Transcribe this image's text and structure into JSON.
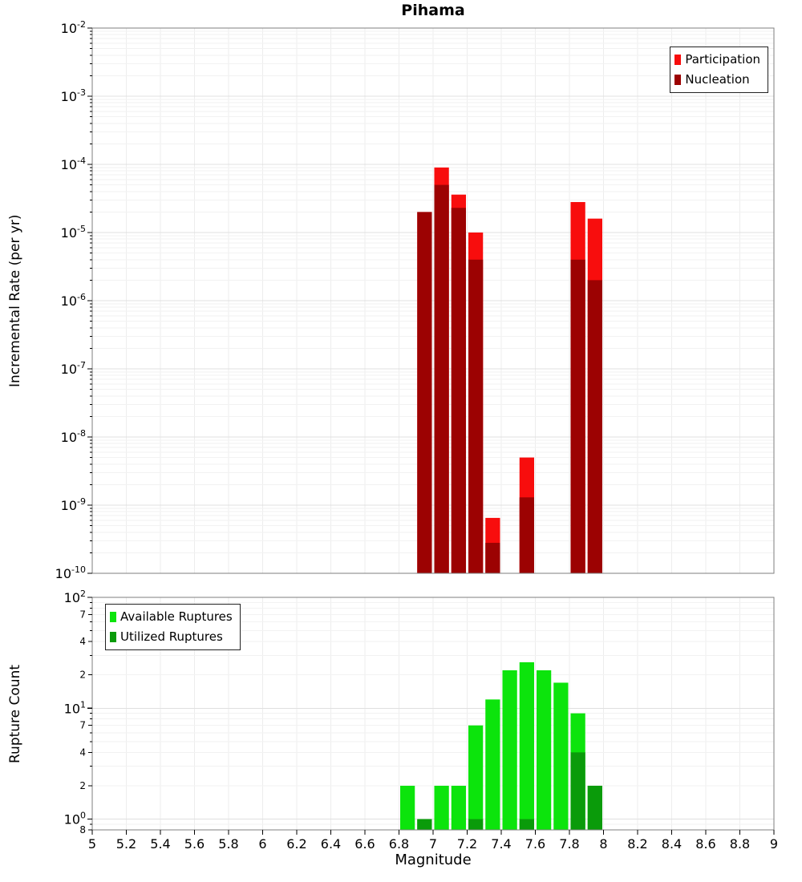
{
  "figure": {
    "title": "Pihama",
    "xlabel": "Magnitude",
    "background": "#ffffff"
  },
  "chart_data": [
    {
      "type": "bar",
      "panel": "top",
      "title": "Pihama",
      "ylabel": "Incremental Rate (per yr)",
      "y_scale": "log",
      "ylim": [
        1e-10,
        0.01
      ],
      "xlim": [
        5,
        9
      ],
      "bin_width": 0.1,
      "grid": true,
      "legend_position": "top-right",
      "x_ticks": [
        "5",
        "5.2",
        "5.4",
        "5.6",
        "5.8",
        "6",
        "6.2",
        "6.4",
        "6.6",
        "6.8",
        "7",
        "7.2",
        "7.4",
        "7.6",
        "7.8",
        "8",
        "8.2",
        "8.4",
        "8.6",
        "8.8",
        "9"
      ],
      "y_tick_exponents": [
        -2,
        -3,
        -4,
        -5,
        -6,
        -7,
        -8,
        -9,
        -10
      ],
      "categories": [
        6.95,
        7.05,
        7.15,
        7.25,
        7.35,
        7.55,
        7.85,
        7.95
      ],
      "series": [
        {
          "name": "Participation",
          "color": "#f80d0d",
          "values": [
            2e-05,
            9e-05,
            3.6e-05,
            1e-05,
            6.5e-10,
            5e-09,
            2.8e-05,
            1.6e-05
          ]
        },
        {
          "name": "Nucleation",
          "color": "#9c0202",
          "values": [
            2e-05,
            5e-05,
            2.3e-05,
            4e-06,
            2.8e-10,
            1.3e-09,
            4e-06,
            2e-06
          ]
        }
      ]
    },
    {
      "type": "bar",
      "panel": "bottom",
      "ylabel": "Rupture Count",
      "y_scale": "log",
      "ylim": [
        0.8,
        100
      ],
      "xlim": [
        5,
        9
      ],
      "bin_width": 0.1,
      "grid": true,
      "legend_position": "top-left",
      "x_ticks": [
        "5",
        "5.2",
        "5.4",
        "5.6",
        "5.8",
        "6",
        "6.2",
        "6.4",
        "6.6",
        "6.8",
        "7",
        "7.2",
        "7.4",
        "7.6",
        "7.8",
        "8",
        "8.2",
        "8.4",
        "8.6",
        "8.8",
        "9"
      ],
      "y_tick_exponents": [
        2,
        1,
        0
      ],
      "y_minor_labeled": [
        70,
        40,
        20,
        7,
        4,
        2,
        0.8
      ],
      "categories": [
        6.85,
        6.95,
        7.05,
        7.15,
        7.25,
        7.35,
        7.45,
        7.55,
        7.65,
        7.75,
        7.85,
        7.95
      ],
      "series": [
        {
          "name": "Available Ruptures",
          "color": "#0ce40c",
          "values": [
            2,
            1,
            2,
            2,
            7,
            12,
            22,
            26,
            22,
            17,
            9,
            2
          ]
        },
        {
          "name": "Utilized Ruptures",
          "color": "#0a9b0a",
          "values": [
            0,
            1,
            0,
            0,
            1,
            0,
            0,
            1,
            0,
            0,
            4,
            2
          ]
        }
      ]
    }
  ]
}
